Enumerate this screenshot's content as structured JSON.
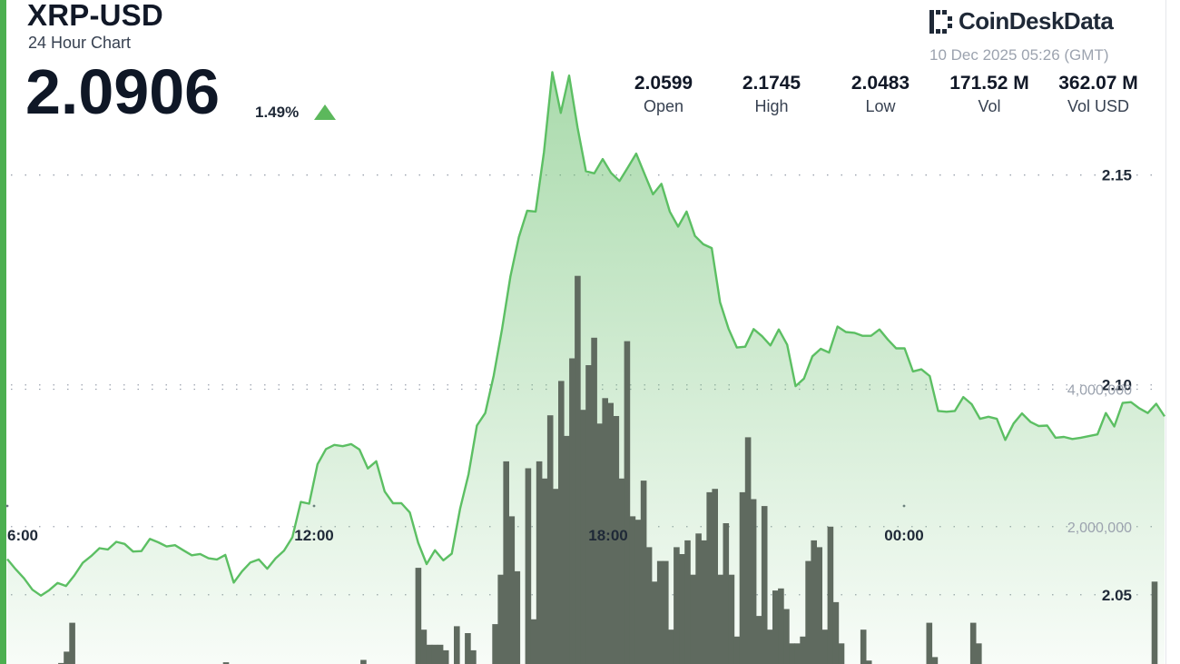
{
  "header": {
    "pair": "XRP-USD",
    "subtitle": "24 Hour Chart",
    "price": "2.0906",
    "change": "1.49%",
    "direction": "up",
    "brand": "CoinDeskData",
    "brand_icon": "coindesk-logo-icon",
    "timestamp": "10 Dec 2025 05:26 (GMT)"
  },
  "stats": [
    {
      "value": "2.0599",
      "label": "Open"
    },
    {
      "value": "2.1745",
      "label": "High"
    },
    {
      "value": "2.0483",
      "label": "Low"
    },
    {
      "value": "171.52 M",
      "label": "Vol"
    },
    {
      "value": "362.07 M",
      "label": "Vol USD"
    }
  ],
  "colors": {
    "line": "#5cbf63",
    "area_top": "#6cc070",
    "bar": "#5f6a5f",
    "accent": "#4caf50"
  },
  "chart_data": {
    "type": "area",
    "x_ticks": [
      "6:00",
      "12:00",
      "18:00",
      "00:00"
    ],
    "price_ticks": [
      "2.15",
      "2.10",
      "2.05"
    ],
    "volume_ticks": [
      "4,000,000",
      "2,000,000"
    ],
    "price_range": [
      2.0335,
      2.1917
    ],
    "volume_range": [
      0,
      4800000
    ],
    "grid": true,
    "price": [
      2.0585,
      2.0561,
      2.0539,
      2.0512,
      2.0498,
      2.0511,
      2.0528,
      2.0521,
      2.0546,
      2.0576,
      2.0592,
      2.0611,
      2.0608,
      2.0626,
      2.0621,
      2.0603,
      2.0604,
      2.0633,
      2.0625,
      2.0615,
      2.0618,
      2.0606,
      2.0594,
      2.0597,
      2.0587,
      2.0584,
      2.0595,
      2.0529,
      2.0556,
      2.0577,
      2.0584,
      2.0562,
      2.0587,
      2.0605,
      2.0637,
      2.0721,
      2.0717,
      2.0811,
      2.0847,
      2.0857,
      2.0854,
      2.0859,
      2.0846,
      2.0801,
      2.0818,
      2.0746,
      2.0718,
      2.0718,
      2.0696,
      2.0624,
      2.0573,
      2.0606,
      2.0582,
      2.0598,
      2.0705,
      2.0787,
      2.0903,
      2.0933,
      2.1022,
      2.1133,
      2.1258,
      2.1352,
      2.1415,
      2.1413,
      2.1555,
      2.1745,
      2.1648,
      2.1737,
      2.1613,
      2.1509,
      2.1504,
      2.1538,
      2.1505,
      2.1486,
      2.1518,
      2.1551,
      2.1502,
      2.1454,
      2.1479,
      2.1413,
      2.1377,
      2.1413,
      2.1355,
      2.1335,
      2.1326,
      2.1197,
      2.1134,
      2.1089,
      2.1091,
      2.1133,
      2.1116,
      2.1094,
      2.1132,
      2.1096,
      2.0997,
      2.1015,
      2.1068,
      2.1086,
      2.1077,
      2.1139,
      2.1126,
      2.1124,
      2.1117,
      2.1117,
      2.1132,
      2.1108,
      2.1087,
      2.1087,
      2.1032,
      2.1037,
      2.1021,
      2.0938,
      2.0936,
      2.0938,
      2.0971,
      2.0954,
      2.0919,
      2.0924,
      2.0919,
      2.0869,
      2.0908,
      2.0932,
      2.0912,
      2.0902,
      2.0903,
      2.0874,
      2.0876,
      2.0871,
      2.0874,
      2.0878,
      2.0882,
      2.0933,
      2.0901,
      2.0957,
      2.0959,
      2.0944,
      2.0933,
      2.0955,
      2.0925
    ],
    "volume": [
      0,
      0,
      0,
      0,
      0,
      0,
      0,
      0,
      15000,
      180000,
      600000,
      0,
      0,
      0,
      0,
      0,
      0,
      0,
      0,
      0,
      0,
      0,
      0,
      0,
      0,
      0,
      0,
      0,
      0,
      0,
      0,
      0,
      0,
      0,
      0,
      0,
      0,
      0,
      25000,
      0,
      0,
      0,
      0,
      0,
      0,
      0,
      0,
      0,
      0,
      0,
      0,
      0,
      0,
      0,
      0,
      0,
      0,
      0,
      0,
      0,
      0,
      0,
      0,
      60000,
      0,
      0,
      0,
      0,
      0,
      0,
      0,
      0,
      0,
      1400000,
      500000,
      280000,
      280000,
      280000,
      200000,
      0,
      550000,
      0,
      450000,
      200000,
      0,
      0,
      0,
      580000,
      1300000,
      2950000,
      2150000,
      1350000,
      0,
      2850000,
      650000,
      2950000,
      2700000,
      3620000,
      2550000,
      4120000,
      3320000,
      4450000,
      5650000,
      3700000,
      4350000,
      4750000,
      3500000,
      3870000,
      3800000,
      3610000,
      2700000,
      4700000,
      2150000,
      2100000,
      2670000,
      1700000,
      1200000,
      1500000,
      1500000,
      500000,
      1700000,
      1600000,
      1800000,
      1300000,
      1900000,
      1800000,
      2500000,
      2550000,
      1300000,
      2050000,
      1300000,
      400000,
      2500000,
      3300000,
      2400000,
      700000,
      2300000,
      500000,
      1070000,
      1100000,
      800000,
      300000,
      300000,
      400000,
      1500000,
      1800000,
      1700000,
      500000,
      2000000,
      900000,
      300000,
      0,
      0,
      0,
      500000,
      50000,
      0,
      0,
      0,
      0,
      0,
      0,
      0,
      0,
      0,
      0,
      600000,
      100000,
      0,
      0,
      0,
      0,
      0,
      0,
      600000,
      300000,
      0,
      0,
      0,
      0,
      0,
      0,
      0,
      0,
      0,
      0,
      0,
      0,
      0,
      0,
      0,
      0,
      0,
      0,
      0,
      0,
      0,
      0,
      0,
      0,
      0,
      0,
      0,
      0,
      0,
      0,
      0,
      1200000
    ]
  }
}
